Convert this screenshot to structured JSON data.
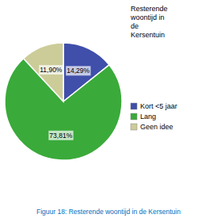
{
  "chart_data": {
    "type": "pie",
    "title": "Resterende\nwoontijd in\nde\nKersentuin",
    "categories": [
      "Kort <5 jaar",
      "Lang",
      "Geen idee"
    ],
    "values": [
      14.29,
      73.81,
      11.9
    ],
    "value_labels": [
      "14,29%",
      "73,81%",
      "11,90%"
    ],
    "colors": [
      "#3f4faa",
      "#3aaa3a",
      "#cccc99"
    ],
    "data_labels": true,
    "legend": "right",
    "annotations": [
      {
        "text": "Figuur 18: Resterende woontijd in de Kersentuin",
        "color": "#0070c0"
      }
    ]
  }
}
